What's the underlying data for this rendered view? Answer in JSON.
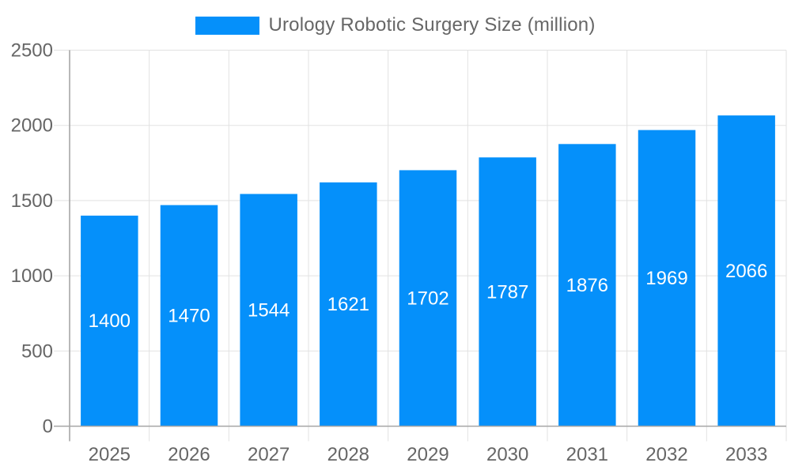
{
  "chart_data": {
    "type": "bar",
    "title": "Urology Robotic Surgery Size (million)",
    "categories": [
      "2025",
      "2026",
      "2027",
      "2028",
      "2029",
      "2030",
      "2031",
      "2032",
      "2033"
    ],
    "series": [
      {
        "name": "Urology Robotic Surgery Size (million)",
        "values": [
          1400,
          1470,
          1544,
          1621,
          1702,
          1787,
          1876,
          1969,
          2066
        ]
      }
    ],
    "xlabel": "",
    "ylabel": "",
    "ylim": [
      0,
      2500
    ],
    "ytick_step": 500,
    "ytick_labels": [
      "0",
      "500",
      "1000",
      "1500",
      "2000",
      "2500"
    ],
    "grid": true,
    "legend_position": "top-center",
    "data_label_position": "center",
    "colors": {
      "bar": "#0590FA",
      "data_label": "#FFFFFF",
      "axis_text": "#666666",
      "grid_line": "#E2E2E2",
      "zero_line": "#A6A6A6",
      "background": "#FFFFFF"
    }
  }
}
